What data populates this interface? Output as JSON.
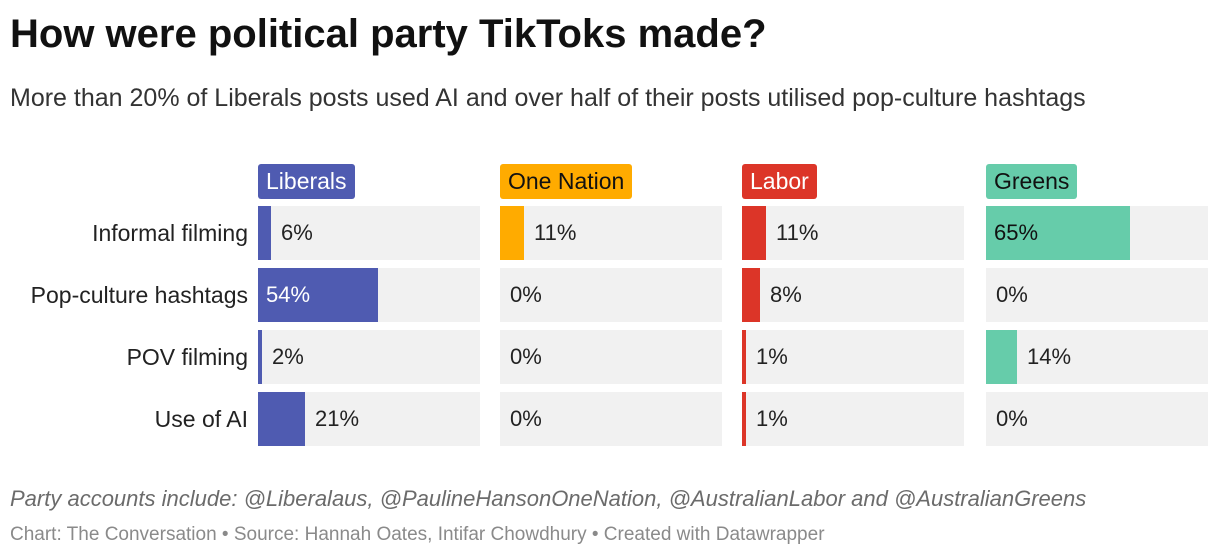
{
  "header": {
    "title": "How were political party TikToks made?",
    "subtitle": "More than 20% of Liberals posts used AI and over half of their posts utilised pop-culture hashtags"
  },
  "footer": {
    "note": "Party accounts include: @Liberalaus, @PaulineHansonOneNation, @AustralianLabor and @AustralianGreens",
    "credits": "Chart: The Conversation • Source: Hannah Oates, Intifar Chowdhury • Created with Datawrapper"
  },
  "chart_data": {
    "type": "bar",
    "title": "How were political party TikToks made?",
    "subtitle": "More than 20% of Liberals posts used AI and over half of their posts utilised pop-culture hashtags",
    "categories": [
      "Informal filming",
      "Pop-culture hashtags",
      "POV filming",
      "Use of AI"
    ],
    "xlim": [
      0,
      100
    ],
    "unit": "%",
    "grid": false,
    "layout": "small-multiples",
    "series": [
      {
        "name": "Liberals",
        "color": "#4f5bb1",
        "label_text_color": "#ffffff",
        "values": [
          6,
          54,
          2,
          21
        ]
      },
      {
        "name": "One Nation",
        "color": "#ffab00",
        "label_text_color": "#111111",
        "values": [
          11,
          0,
          0,
          0
        ]
      },
      {
        "name": "Labor",
        "color": "#dc3528",
        "label_text_color": "#ffffff",
        "values": [
          11,
          8,
          1,
          1
        ]
      },
      {
        "name": "Greens",
        "color": "#66ccaa",
        "label_text_color": "#111111",
        "values": [
          65,
          0,
          14,
          0
        ]
      }
    ]
  }
}
